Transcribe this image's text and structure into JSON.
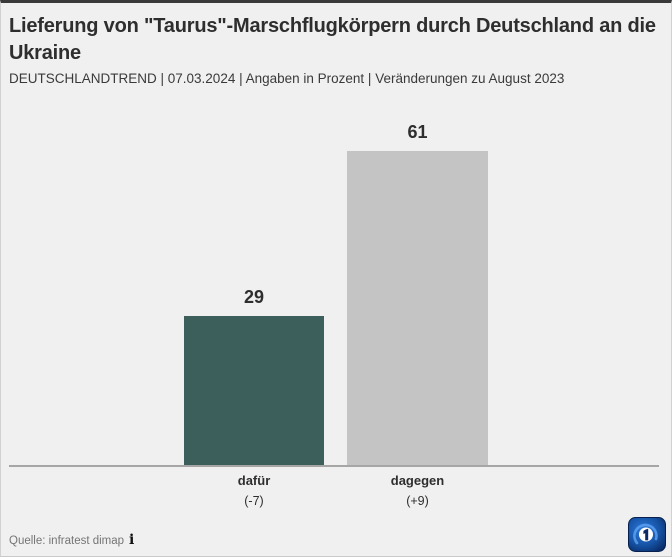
{
  "header": {
    "title": "Lieferung von \"Taurus\"-Marschflugkörpern durch Deutschland an die Ukraine",
    "subtitle": "DEUTSCHLANDTREND | 07.03.2024 | Angaben in Prozent | Veränderungen zu August 2023"
  },
  "chart_data": {
    "type": "bar",
    "title": "Lieferung von \"Taurus\"-Marschflugkörpern durch Deutschland an die Ukraine",
    "subtitle": "DEUTSCHLANDTREND | 07.03.2024 | Angaben in Prozent | Veränderungen zu August 2023",
    "categories": [
      "dafür",
      "dagegen"
    ],
    "values": [
      29,
      61
    ],
    "changes": [
      "(-7)",
      "(+9)"
    ],
    "colors": [
      "#3d5f5b",
      "#c4c4c4"
    ],
    "unit": "Prozent",
    "grid": false,
    "legend": false,
    "value_labels": true,
    "baseline": true
  },
  "footer": {
    "source": "Quelle: infratest dimap",
    "info_icon_glyph": "i",
    "logo_name": "tagesschau-logo"
  },
  "colors": {
    "background": "#f0f0f0",
    "top_border": "#3a3a3a",
    "baseline": "#a6a6a6",
    "title_text": "#2e2e2e",
    "source_text": "#757575",
    "logo_blue_dark": "#0a2a66",
    "logo_blue_light": "#2f7be0"
  }
}
